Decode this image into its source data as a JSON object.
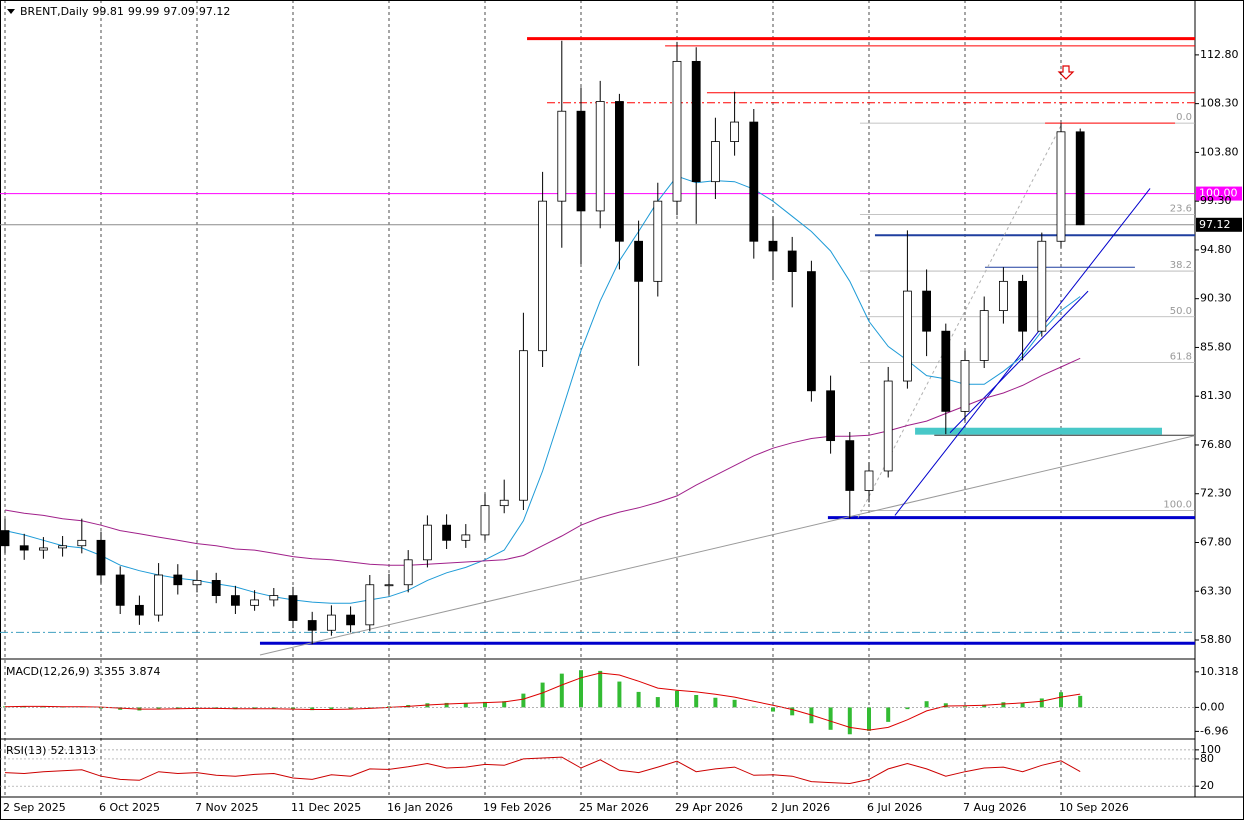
{
  "chart_data": [
    {
      "type": "candlestick",
      "title": "BRENT,Daily",
      "header_values": [
        99.81,
        99.99,
        97.09,
        97.12
      ],
      "categories": [
        "2 Sep 2025",
        null,
        null,
        null,
        null,
        "6 Oct 2025",
        null,
        null,
        null,
        null,
        "7 Nov 2025",
        null,
        null,
        null,
        null,
        "11 Dec 2025",
        null,
        null,
        null,
        null,
        "16 Jan 2026",
        null,
        null,
        null,
        null,
        "19 Feb 2026",
        null,
        null,
        null,
        null,
        "25 Mar 2026",
        null,
        null,
        null,
        null,
        "29 Apr 2026",
        null,
        null,
        null,
        null,
        "2 Jun 2026",
        null,
        null,
        null,
        null,
        "6 Jul 2026",
        null,
        null,
        null,
        null,
        "7 Aug 2026",
        null,
        null,
        null,
        null,
        "10 Sep 2026",
        null
      ],
      "open": [
        68.9,
        67.5,
        67.1,
        67.3,
        67.5,
        68.0,
        64.8,
        62.0,
        61.1,
        64.8,
        63.9,
        64.3,
        62.9,
        62.0,
        62.5,
        62.9,
        60.6,
        59.7,
        61.1,
        60.2,
        63.9,
        63.9,
        66.2,
        69.4,
        68.0,
        68.5,
        71.2,
        71.7,
        85.5,
        99.3,
        107.6,
        98.4,
        108.5,
        95.6,
        91.9,
        99.3,
        112.2,
        101.1,
        104.8,
        106.6,
        95.6,
        94.7,
        92.8,
        81.8,
        77.2,
        72.6,
        74.4,
        82.7,
        91.0,
        87.3,
        79.9,
        84.6,
        89.2,
        91.9,
        87.3,
        95.6,
        105.7
      ],
      "high": [
        70.0,
        68.6,
        68.3,
        68.4,
        70.0,
        68.8,
        65.6,
        62.9,
        65.9,
        65.8,
        65.2,
        65.0,
        63.8,
        63.4,
        63.6,
        63.7,
        61.4,
        62.0,
        61.9,
        64.8,
        64.9,
        67.1,
        70.3,
        70.4,
        69.5,
        72.3,
        73.6,
        89.0,
        102.0,
        114.1,
        109.8,
        110.4,
        109.2,
        97.5,
        101.0,
        114.0,
        113.5,
        107.0,
        109.4,
        107.8,
        97.9,
        96.0,
        93.8,
        83.2,
        78.0,
        75.2,
        84.0,
        96.6,
        93.0,
        88.0,
        85.5,
        90.5,
        93.2,
        92.5,
        96.4,
        106.5,
        106.0
      ],
      "low": [
        66.8,
        66.2,
        66.3,
        66.5,
        66.8,
        64.0,
        61.2,
        60.2,
        60.5,
        63.0,
        63.2,
        62.2,
        61.2,
        61.5,
        61.9,
        59.9,
        58.4,
        59.2,
        59.5,
        59.6,
        63.0,
        63.2,
        65.5,
        67.2,
        67.3,
        68.0,
        70.5,
        70.8,
        84.0,
        95.0,
        93.5,
        96.8,
        93.0,
        84.1,
        90.5,
        98.0,
        97.2,
        99.5,
        103.5,
        94.0,
        92.0,
        89.5,
        80.8,
        76.0,
        70.0,
        71.5,
        73.8,
        82.0,
        85.0,
        77.8,
        79.0,
        83.9,
        88.0,
        84.6,
        86.8,
        95.0,
        97.09
      ],
      "close": [
        67.5,
        67.1,
        67.3,
        67.5,
        68.0,
        64.8,
        62.0,
        61.1,
        64.8,
        63.9,
        64.3,
        62.9,
        62.0,
        62.5,
        62.9,
        60.6,
        59.7,
        61.1,
        60.2,
        63.9,
        63.9,
        66.2,
        69.4,
        68.0,
        68.5,
        71.2,
        71.7,
        85.5,
        99.3,
        107.6,
        98.4,
        108.5,
        95.6,
        91.9,
        99.3,
        112.2,
        101.1,
        104.8,
        106.6,
        95.6,
        94.7,
        92.8,
        81.8,
        77.2,
        72.6,
        74.4,
        82.7,
        91.0,
        87.3,
        79.9,
        84.6,
        89.2,
        91.9,
        87.3,
        95.6,
        105.7,
        97.12
      ],
      "up_color": "#ffffff",
      "down_color": "#000000",
      "series": [
        {
          "color": "#1e9bd7",
          "values": [
            68.9,
            68.5,
            68.0,
            67.5,
            67.3,
            66.6,
            65.7,
            65.2,
            64.8,
            64.5,
            64.3,
            64.0,
            63.7,
            63.2,
            62.8,
            62.5,
            62.3,
            62.2,
            62.2,
            62.5,
            62.8,
            63.4,
            64.3,
            65.0,
            65.5,
            66.2,
            67.1,
            69.8,
            74.4,
            79.9,
            85.5,
            90.1,
            93.8,
            96.5,
            99.3,
            101.6,
            101.0,
            101.2,
            101.1,
            100.4,
            99.3,
            97.9,
            96.5,
            94.7,
            91.9,
            88.2,
            85.9,
            84.6,
            83.2,
            82.9,
            82.4,
            82.4,
            83.6,
            85.0,
            87.3,
            89.2,
            90.5
          ]
        },
        {
          "color": "#a0208a",
          "values": [
            70.8,
            70.5,
            70.3,
            70.0,
            69.8,
            69.4,
            68.9,
            68.6,
            68.3,
            68.0,
            67.7,
            67.5,
            67.2,
            67.1,
            66.8,
            66.5,
            66.3,
            66.2,
            66.0,
            65.8,
            65.7,
            65.7,
            65.8,
            65.9,
            66.0,
            66.1,
            66.2,
            66.6,
            67.5,
            68.4,
            69.4,
            70.1,
            70.6,
            71.0,
            71.5,
            72.1,
            73.1,
            74.0,
            74.9,
            75.8,
            76.5,
            77.0,
            77.4,
            77.6,
            77.6,
            77.7,
            78.1,
            78.6,
            79.0,
            79.7,
            80.4,
            81.1,
            81.6,
            82.3,
            83.2,
            84.0,
            84.8
          ]
        }
      ],
      "ylim": [
        57.14,
        117.68
      ],
      "yticks": [
        {
          "value": 58.8,
          "label": "58.80"
        },
        {
          "value": 63.3,
          "label": "63.30"
        },
        {
          "value": 67.8,
          "label": "67.80"
        },
        {
          "value": 72.3,
          "label": "72.30"
        },
        {
          "value": 76.8,
          "label": "76.80"
        },
        {
          "value": 81.3,
          "label": "81.30"
        },
        {
          "value": 85.8,
          "label": "85.80"
        },
        {
          "value": 90.3,
          "label": "90.30"
        },
        {
          "value": 94.8,
          "label": "94.80"
        },
        {
          "value": 99.3,
          "label": "99.30"
        },
        {
          "value": 103.8,
          "label": "103.80"
        },
        {
          "value": 108.3,
          "label": "108.30"
        },
        {
          "value": 112.8,
          "label": "112.80"
        }
      ],
      "price_labels": [
        {
          "value": 100,
          "label": "100.00"
        },
        97.12
      ],
      "price_label_colors": [
        "#ff00ff",
        "#000000"
      ],
      "levels": [
        {
          "value": 114.3,
          "from": 27.19,
          "color": "#ff0000",
          "width": 3
        },
        {
          "value": 113.63,
          "from": 34.38,
          "color": "#ff0000",
          "width": 1
        },
        {
          "value": 109.3,
          "from": 36.56,
          "color": "#ff0000",
          "width": 1
        },
        {
          "value": 108.38,
          "from": 28.23,
          "color": "#ff0000",
          "width": 1,
          "dash": true
        },
        {
          "value": 106.5,
          "from": 54.17,
          "to": 60.94,
          "color": "#ff0000",
          "width": 1
        },
        {
          "value": 100,
          "color": "#ff00ff",
          "width": 1
        },
        {
          "value": 97.12,
          "color": "#8c8c8c",
          "width": 1
        },
        {
          "value": 96.15,
          "from": 45.31,
          "color": "#1f3f9f",
          "width": 2
        },
        {
          "value": 93.2,
          "from": 51.04,
          "to": 58.85,
          "color": "#1f3f9f",
          "width": 1
        },
        {
          "value": 77.7,
          "from": 48.4,
          "color": "#333333",
          "width": 1
        },
        {
          "value": 70.1,
          "from": 42.86,
          "color": "#0000cc",
          "width": 3
        },
        {
          "value": 59.5,
          "color": "#40a0c0",
          "width": 1,
          "dash": true
        },
        {
          "value": 58.5,
          "from": 13.28,
          "color": "#0000cc",
          "width": 3
        }
      ],
      "zones": [
        {
          "range": [
            77.75,
            78.39
          ],
          "from": 47.4,
          "to": 60.26,
          "color": "#48c8c8"
        }
      ],
      "fibonacci": {
        "from": 44.53,
        "levels": [
          {
            "value": 106.5,
            "label": "0.0"
          },
          {
            "value": 98.07,
            "label": "23.6"
          },
          {
            "value": 92.85,
            "label": "38.2"
          },
          {
            "value": 88.63,
            "label": "50.0"
          },
          {
            "value": 84.41,
            "label": "61.8"
          },
          {
            "value": 70.76,
            "label": "100.0"
          }
        ]
      },
      "trendlines": [
        {
          "x": [
            13.28,
            61.98
          ],
          "y": [
            57.42,
            77.66
          ],
          "color": "#9a9a9a"
        },
        {
          "x": [
            46.35,
            59.64
          ],
          "y": [
            70.3,
            100.47
          ],
          "color": "#0000cc"
        },
        {
          "x": [
            49.22,
            56.41
          ],
          "y": [
            77.93,
            91.0
          ],
          "color": "#0000cc"
        },
        {
          "x": [
            44.43,
            55.05
          ],
          "y": [
            70.1,
            106.45
          ],
          "color": "#b0b0b0",
          "dash": true
        }
      ]
    },
    {
      "type": "macd",
      "title": "MACD(12,26,9)",
      "header_values": [
        3.355,
        3.874
      ],
      "color": "#33bb33",
      "signal_color": "#dd0000",
      "values": [
        0.3,
        0.3,
        0.2,
        0.1,
        0.2,
        -0.3,
        -0.7,
        -0.9,
        -0.4,
        -0.3,
        -0.2,
        -0.4,
        -0.5,
        -0.4,
        -0.3,
        -0.6,
        -0.8,
        -0.5,
        -0.5,
        0.0,
        0.3,
        0.7,
        1.2,
        1.3,
        1.3,
        1.6,
        1.8,
        4.0,
        7.2,
        9.8,
        10.8,
        10.6,
        7.5,
        4.5,
        3.0,
        4.8,
        3.6,
        2.8,
        2.2,
        0.2,
        -1.2,
        -2.3,
        -4.6,
        -6.5,
        -7.8,
        -6.8,
        -4.2,
        -0.5,
        1.8,
        1.2,
        0.3,
        0.8,
        1.5,
        1.4,
        2.6,
        4.4,
        3.355
      ],
      "signal": [
        0.2,
        0.3,
        0.3,
        0.2,
        0.2,
        0.1,
        -0.2,
        -0.5,
        -0.5,
        -0.4,
        -0.3,
        -0.3,
        -0.4,
        -0.4,
        -0.4,
        -0.5,
        -0.6,
        -0.6,
        -0.5,
        -0.3,
        0.0,
        0.3,
        0.7,
        1.0,
        1.2,
        1.4,
        1.6,
        2.4,
        4.2,
        6.5,
        8.6,
        10.0,
        9.4,
        7.6,
        5.6,
        5.0,
        4.5,
        3.8,
        3.0,
        1.8,
        0.6,
        -0.6,
        -2.2,
        -4.0,
        -5.8,
        -6.6,
        -5.8,
        -3.6,
        -1.0,
        0.4,
        0.5,
        0.6,
        1.0,
        1.3,
        1.8,
        3.0,
        3.874
      ],
      "ylim": [
        -8.88,
        13.47
      ],
      "yticks": [
        10.318,
        {
          "value": 0,
          "label": "0.00"
        },
        -6.96
      ],
      "grid_values": [
        0
      ]
    },
    {
      "type": "rsi",
      "title": "RSI(13)",
      "header_values": [
        52.1313
      ],
      "color": "#cc0000",
      "values": [
        50,
        48,
        52,
        54,
        56,
        42,
        35,
        33,
        52,
        48,
        50,
        44,
        42,
        46,
        48,
        38,
        35,
        45,
        42,
        58,
        57,
        63,
        70,
        60,
        62,
        68,
        66,
        80,
        82,
        84,
        60,
        78,
        55,
        50,
        62,
        75,
        52,
        58,
        62,
        44,
        45,
        42,
        30,
        28,
        26,
        35,
        58,
        70,
        58,
        42,
        52,
        60,
        62,
        52,
        66,
        76,
        52.1313
      ],
      "ylim": [
        -3.8,
        119.5
      ],
      "yticks": [
        100,
        80,
        20
      ],
      "grid": true
    }
  ]
}
